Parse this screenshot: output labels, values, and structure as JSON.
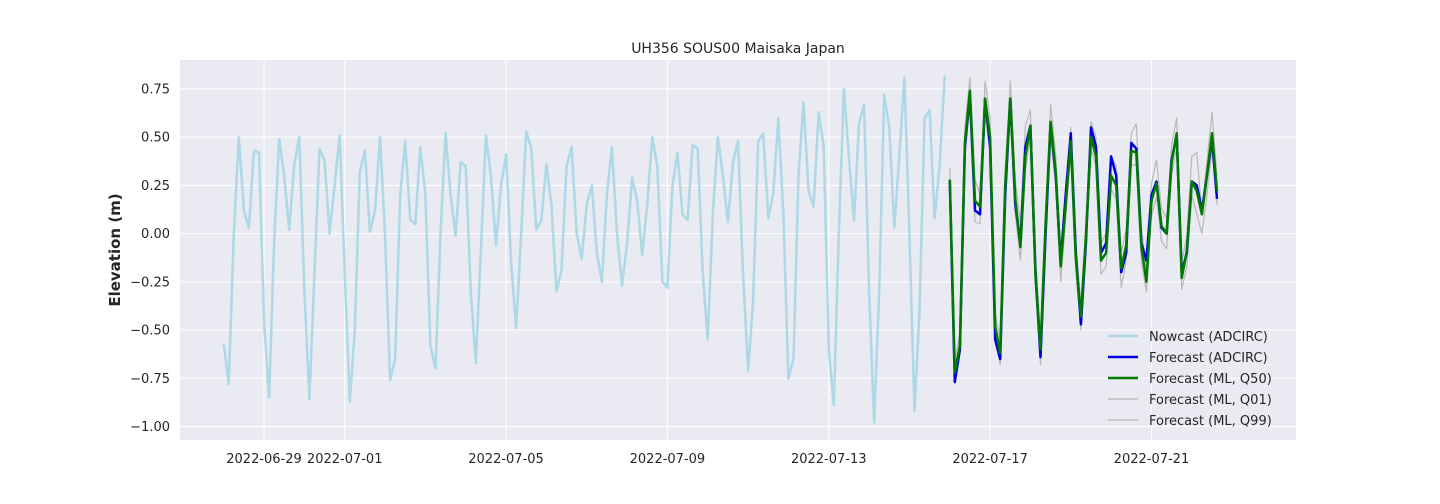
{
  "chart_data": {
    "type": "line",
    "title": "UH356 SOUS00 Maisaka Japan",
    "xlabel": "",
    "ylabel": "Elevation (m)",
    "ylim": [
      -1.07,
      0.9
    ],
    "xlim": [
      "2022-06-26T22:00",
      "2022-07-24T14:00"
    ],
    "x_ticks": [
      "2022-06-29",
      "2022-07-01",
      "2022-07-05",
      "2022-07-09",
      "2022-07-13",
      "2022-07-17",
      "2022-07-21"
    ],
    "y_ticks": [
      0.75,
      0.5,
      0.25,
      0.0,
      -0.25,
      -0.5,
      -0.75,
      -1.0
    ],
    "y_tick_labels": [
      "0.75",
      "0.50",
      "0.25",
      "0.00",
      "−0.25",
      "−0.50",
      "−0.75",
      "−1.00"
    ],
    "grid": true,
    "legend_position": "lower right",
    "series": [
      {
        "name": "Nowcast (ADCIRC)",
        "color": "#add8e6",
        "x_start": "2022-06-28T00:00",
        "step_hours": 3,
        "values": [
          -0.57,
          -0.78,
          0.0,
          0.5,
          0.12,
          0.03,
          0.43,
          0.42,
          -0.45,
          -0.85,
          -0.05,
          0.49,
          0.3,
          0.02,
          0.36,
          0.5,
          -0.3,
          -0.86,
          -0.2,
          0.44,
          0.38,
          0.0,
          0.25,
          0.51,
          -0.2,
          -0.87,
          -0.5,
          0.32,
          0.43,
          0.01,
          0.12,
          0.5,
          0.0,
          -0.76,
          -0.65,
          0.2,
          0.48,
          0.07,
          0.05,
          0.45,
          0.2,
          -0.58,
          -0.7,
          0.0,
          0.52,
          0.2,
          -0.01,
          0.37,
          0.35,
          -0.3,
          -0.67,
          -0.1,
          0.51,
          0.3,
          -0.06,
          0.25,
          0.41,
          -0.15,
          -0.49,
          0.0,
          0.53,
          0.44,
          0.02,
          0.07,
          0.36,
          0.15,
          -0.3,
          -0.19,
          0.35,
          0.45,
          0.0,
          -0.13,
          0.15,
          0.25,
          -0.1,
          -0.25,
          0.2,
          0.45,
          0.0,
          -0.27,
          -0.05,
          0.29,
          0.17,
          -0.11,
          0.15,
          0.5,
          0.35,
          -0.25,
          -0.28,
          0.25,
          0.42,
          0.1,
          0.07,
          0.46,
          0.44,
          -0.2,
          -0.55,
          0.1,
          0.5,
          0.3,
          0.06,
          0.37,
          0.48,
          -0.2,
          -0.71,
          -0.35,
          0.48,
          0.52,
          0.08,
          0.21,
          0.6,
          0.1,
          -0.75,
          -0.65,
          0.3,
          0.68,
          0.22,
          0.14,
          0.63,
          0.45,
          -0.6,
          -0.89,
          0.0,
          0.75,
          0.4,
          0.07,
          0.57,
          0.67,
          -0.3,
          -0.98,
          -0.3,
          0.72,
          0.55,
          0.03,
          0.4,
          0.81,
          0.0,
          -0.92,
          -0.4,
          0.6,
          0.64,
          0.08,
          0.36,
          0.82
        ]
      },
      {
        "name": "Forecast (ADCIRC)",
        "color": "#0000dd",
        "x_start": "2022-07-16T00:00",
        "step_hours": 3,
        "values": [
          0.27,
          -0.77,
          -0.6,
          0.45,
          0.72,
          0.12,
          0.1,
          0.7,
          0.45,
          -0.55,
          -0.65,
          0.2,
          0.7,
          0.15,
          -0.05,
          0.45,
          0.56,
          -0.2,
          -0.64,
          0.0,
          0.57,
          0.3,
          -0.15,
          0.2,
          0.52,
          -0.1,
          -0.47,
          -0.05,
          0.55,
          0.45,
          -0.1,
          -0.05,
          0.4,
          0.3,
          -0.2,
          -0.1,
          0.47,
          0.44,
          -0.05,
          -0.14,
          0.2,
          0.27,
          0.03,
          0.0,
          0.38,
          0.51,
          -0.2,
          -0.1,
          0.27,
          0.25,
          0.12,
          0.3,
          0.49,
          0.18
        ]
      },
      {
        "name": "Forecast (ML, Q50)",
        "color": "#007a00",
        "x_start": "2022-07-16T00:00",
        "step_hours": 3,
        "values": [
          0.28,
          -0.72,
          -0.58,
          0.47,
          0.74,
          0.17,
          0.14,
          0.7,
          0.5,
          -0.48,
          -0.62,
          0.25,
          0.7,
          0.18,
          -0.07,
          0.4,
          0.56,
          -0.22,
          -0.6,
          0.05,
          0.58,
          0.32,
          -0.17,
          0.15,
          0.48,
          -0.13,
          -0.43,
          -0.02,
          0.5,
          0.4,
          -0.14,
          -0.1,
          0.3,
          0.25,
          -0.18,
          -0.06,
          0.43,
          0.42,
          -0.07,
          -0.25,
          0.17,
          0.26,
          0.04,
          0.0,
          0.37,
          0.52,
          -0.23,
          -0.09,
          0.27,
          0.22,
          0.1,
          0.3,
          0.52,
          0.22
        ]
      },
      {
        "name": "Forecast (ML, Q01)",
        "color": "#b8b8b8",
        "x_start": "2022-07-16T00:00",
        "step_hours": 3,
        "values": [
          0.2,
          -0.75,
          -0.62,
          0.4,
          0.66,
          0.06,
          0.05,
          0.62,
          0.42,
          -0.52,
          -0.68,
          0.16,
          0.63,
          0.1,
          -0.14,
          0.33,
          0.5,
          -0.28,
          -0.68,
          -0.03,
          0.5,
          0.25,
          -0.25,
          0.08,
          0.42,
          -0.19,
          -0.5,
          -0.08,
          0.44,
          0.35,
          -0.21,
          -0.17,
          0.23,
          0.18,
          -0.28,
          -0.14,
          0.35,
          0.36,
          -0.15,
          -0.3,
          0.09,
          0.19,
          -0.04,
          -0.08,
          0.3,
          0.45,
          -0.29,
          -0.17,
          0.2,
          0.1,
          0.0,
          0.2,
          0.44,
          0.15
        ]
      },
      {
        "name": "Forecast (ML, Q99)",
        "color": "#b8b8b8",
        "x_start": "2022-07-16T00:00",
        "step_hours": 3,
        "values": [
          0.34,
          -0.66,
          -0.52,
          0.55,
          0.81,
          0.28,
          0.2,
          0.79,
          0.6,
          -0.42,
          -0.55,
          0.33,
          0.79,
          0.28,
          0.05,
          0.56,
          0.64,
          -0.13,
          -0.52,
          0.12,
          0.67,
          0.41,
          -0.09,
          0.25,
          0.55,
          -0.06,
          -0.36,
          0.06,
          0.58,
          0.5,
          -0.05,
          0.0,
          0.4,
          0.35,
          -0.1,
          0.02,
          0.52,
          0.57,
          0.02,
          -0.18,
          0.26,
          0.38,
          0.13,
          0.08,
          0.46,
          0.6,
          -0.15,
          -0.01,
          0.4,
          0.42,
          0.1,
          0.37,
          0.63,
          0.3
        ]
      }
    ]
  }
}
